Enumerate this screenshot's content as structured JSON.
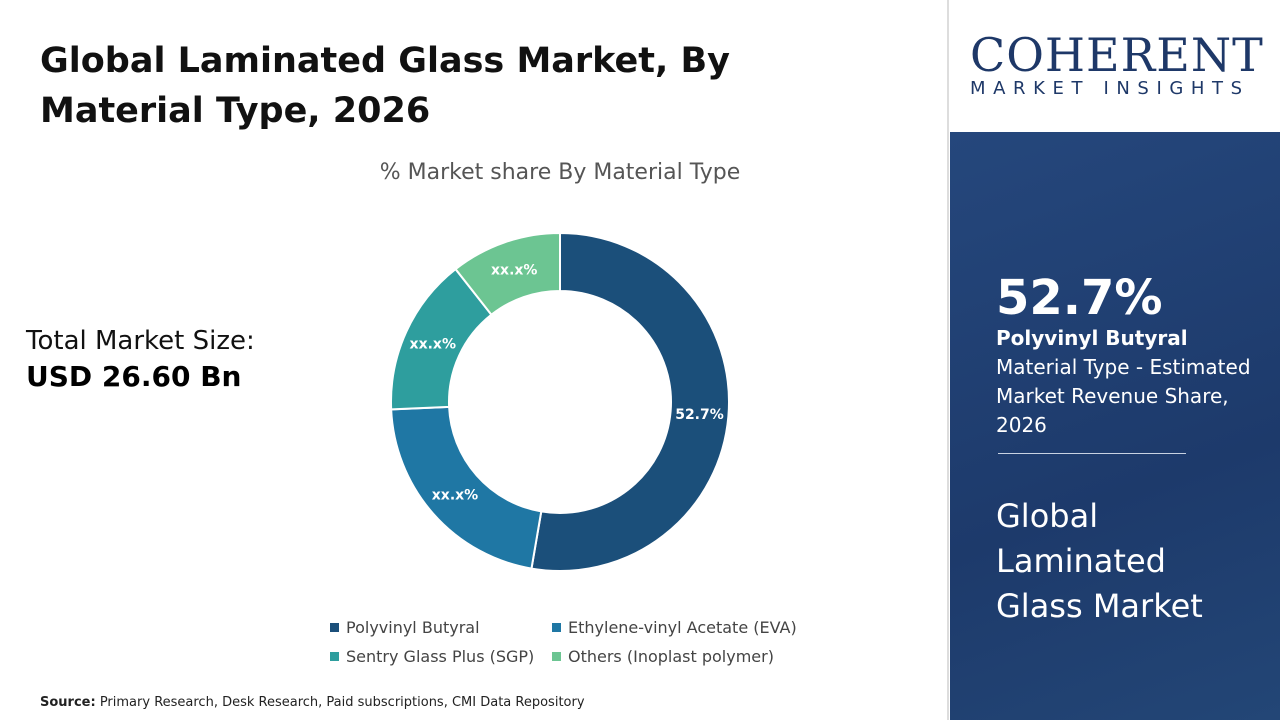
{
  "title": "Global Laminated Glass Market, By Material Type, 2026",
  "total": {
    "label": "Total Market Size:",
    "value": "USD 26.60 Bn"
  },
  "source": {
    "label": "Source:",
    "text": " Primary Research, Desk Research, Paid subscriptions, CMI Data Repository"
  },
  "logo": {
    "line1": "COHERENT",
    "line2": "MARKET INSIGHTS"
  },
  "panel": {
    "pct": "52.7%",
    "bold": "Polyvinyl Butyral",
    "desc": " Material Type - Estimated Market Revenue Share, 2026",
    "market": "Global Laminated Glass Market"
  },
  "chart_data": {
    "type": "pie",
    "donut": true,
    "title": "% Market share By Material Type",
    "categories": [
      "Polyvinyl Butyral",
      "Ethylene-vinyl Acetate (EVA)",
      "Sentry Glass Plus (SGP)",
      "Others (Inoplast polymer)"
    ],
    "values": [
      52.7,
      21.6,
      15.1,
      10.6
    ],
    "labels": [
      "52.7%",
      "xx.x%",
      "xx.x%",
      "xx.x%"
    ],
    "colors": [
      "#1b4f7a",
      "#1f77a4",
      "#2e9e9e",
      "#6cc592"
    ],
    "legend": "bottom"
  }
}
